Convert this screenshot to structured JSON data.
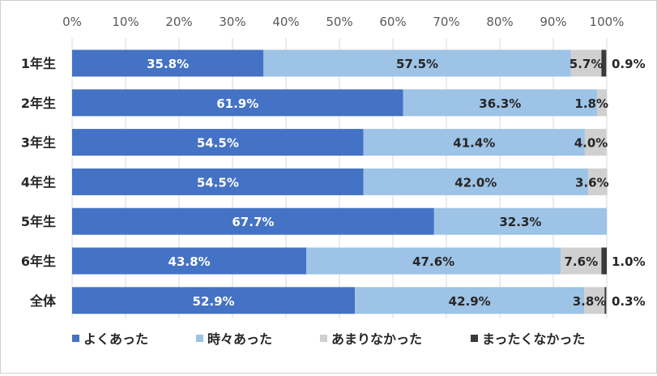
{
  "chart_data": {
    "type": "bar",
    "orientation": "horizontal",
    "stacked": true,
    "percent_stacked": true,
    "categories": [
      "1年生",
      "2年生",
      "3年生",
      "4年生",
      "5年生",
      "6年生",
      "全体"
    ],
    "series": [
      {
        "name": "よくあった",
        "color": "#4472C4",
        "values": [
          35.8,
          61.9,
          54.5,
          54.5,
          67.7,
          43.8,
          52.9
        ],
        "labels": [
          "35.8%",
          "61.9%",
          "54.5%",
          "54.5%",
          "67.7%",
          "43.8%",
          "52.9%"
        ]
      },
      {
        "name": "時々あった",
        "color": "#9DC3E6",
        "values": [
          57.5,
          36.3,
          41.4,
          42.0,
          32.3,
          47.6,
          42.9
        ],
        "labels": [
          "57.5%",
          "36.3%",
          "41.4%",
          "42.0%",
          "32.3%",
          "47.6%",
          "42.9%"
        ]
      },
      {
        "name": "あまりなかった",
        "color": "#D0D0D0",
        "values": [
          5.7,
          1.8,
          4.0,
          3.6,
          0,
          7.6,
          3.8
        ],
        "labels": [
          "5.7%",
          "1.8%",
          "4.0%",
          "3.6%",
          "",
          "7.6%",
          "3.8%"
        ]
      },
      {
        "name": "まったくなかった",
        "color": "#3A3A3A",
        "values": [
          0.9,
          0,
          0,
          0,
          0,
          1.0,
          0.3
        ],
        "labels": [
          "0.9%",
          "",
          "",
          "",
          "",
          "1.0%",
          "0.3%"
        ]
      }
    ],
    "xlim": [
      0,
      100
    ],
    "x_ticks": [
      "0%",
      "10%",
      "20%",
      "30%",
      "40%",
      "50%",
      "60%",
      "70%",
      "80%",
      "90%",
      "100%"
    ],
    "grid": true,
    "legend_position": "bottom",
    "title": "",
    "xlabel": "",
    "ylabel": ""
  }
}
